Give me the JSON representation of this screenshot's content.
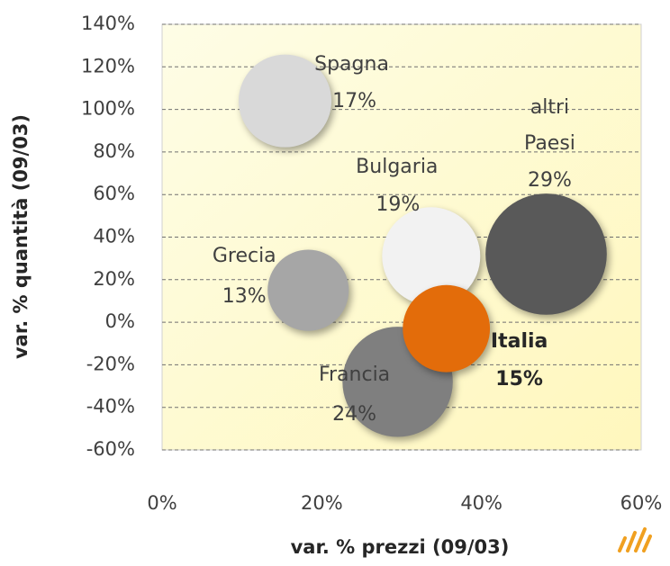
{
  "chart_data": {
    "type": "bubble",
    "x_label": "var. % prezzi (09/03)",
    "y_label": "var. % quantità (09/03)",
    "xlim": [
      0,
      60
    ],
    "ylim": [
      -60,
      140
    ],
    "xticks": [
      {
        "value": 0,
        "label": "0%"
      },
      {
        "value": 20,
        "label": "20%"
      },
      {
        "value": 40,
        "label": "40%"
      },
      {
        "value": 60,
        "label": "60%"
      }
    ],
    "yticks": [
      {
        "value": -60,
        "label": "-60%"
      },
      {
        "value": -40,
        "label": "-40%"
      },
      {
        "value": -20,
        "label": "-20%"
      },
      {
        "value": 0,
        "label": "0%"
      },
      {
        "value": 20,
        "label": "20%"
      },
      {
        "value": 40,
        "label": "40%"
      },
      {
        "value": 60,
        "label": "60%"
      },
      {
        "value": 80,
        "label": "80%"
      },
      {
        "value": 100,
        "label": "100%"
      },
      {
        "value": 120,
        "label": "120%"
      },
      {
        "value": 140,
        "label": "140%"
      }
    ],
    "grid": true,
    "series": [
      {
        "name": "Spagna",
        "color": "#d9d9d9",
        "x": 15.4,
        "y": 104,
        "size": 17,
        "size_label": "17%"
      },
      {
        "name": "Bulgaria",
        "color": "#f2f2f2",
        "x": 33.7,
        "y": 31,
        "size": 19,
        "size_label": "19%"
      },
      {
        "name": "altri Paesi",
        "color": "#595959",
        "x": 48.1,
        "y": 32,
        "size": 29,
        "size_label": "29%"
      },
      {
        "name": "Grecia",
        "color": "#a6a6a6",
        "x": 18.3,
        "y": 15,
        "size": 13,
        "size_label": "13%"
      },
      {
        "name": "Francia",
        "color": "#7f7f7f",
        "x": 29.5,
        "y": -28,
        "size": 24,
        "size_label": "24%"
      },
      {
        "name": "Italia",
        "color": "#e36c0a",
        "x": 35.6,
        "y": -3,
        "size": 15,
        "size_label": "15%"
      }
    ]
  }
}
